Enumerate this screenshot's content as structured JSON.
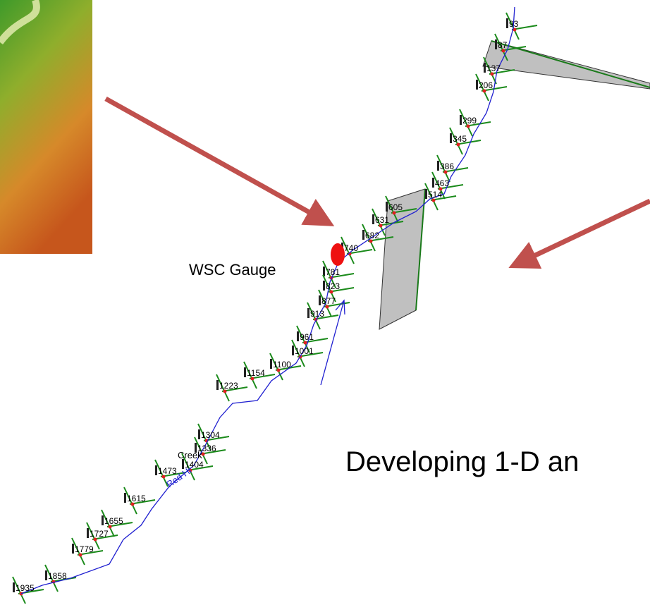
{
  "stations": [
    "93",
    "87",
    "137",
    "206",
    "299",
    "345",
    "386",
    "463",
    "514",
    "605",
    "631",
    "682",
    "740",
    "781",
    "823",
    "877",
    "913",
    "961",
    "1001",
    "1100",
    "1154",
    "1223",
    "1304",
    "1336",
    "1404",
    "1473",
    "1615",
    "1655",
    "1727",
    "1779",
    "1858",
    "1935"
  ],
  "gauge_label": "WSC Gauge",
  "river_label": "Red Hi",
  "creek_label": "Creek",
  "heading": "Developing 1-D an"
}
